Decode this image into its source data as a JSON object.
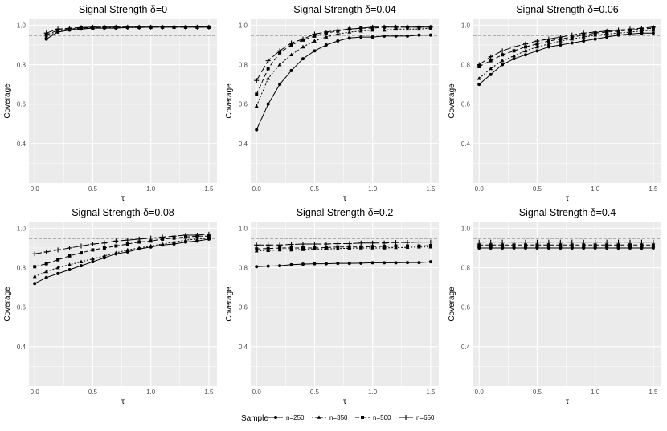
{
  "figure": {
    "legend_title": "Sample",
    "legend_position": "bottom",
    "reference_line": 0.95,
    "colors": {
      "panel_bg": "#ebebeb",
      "grid": "#ffffff",
      "line": "#000000"
    }
  },
  "series_styles": [
    {
      "name": "n=250",
      "dash": "none",
      "marker": "circle"
    },
    {
      "name": "n=350",
      "dash": "2,2",
      "marker": "triangle"
    },
    {
      "name": "n=500",
      "dash": "5,3",
      "marker": "square"
    },
    {
      "name": "n=650",
      "dash": "9,3",
      "marker": "cross"
    }
  ],
  "chart_data": [
    {
      "type": "line",
      "title": "Signal Strength δ=0",
      "xlabel": "τ",
      "ylabel": "Coverage",
      "xlim": [
        -0.05,
        1.57
      ],
      "ylim": [
        0.2,
        1.03
      ],
      "xticks": [
        "0.0",
        "0.5",
        "1.0",
        "1.5"
      ],
      "yticks": [
        "0.4",
        "0.6",
        "0.8",
        "1.0"
      ],
      "x": [
        0.1,
        0.2,
        0.3,
        0.4,
        0.5,
        0.6,
        0.7,
        0.8,
        0.9,
        1.0,
        1.1,
        1.2,
        1.3,
        1.4,
        1.5
      ],
      "series": [
        {
          "name": "n=250",
          "values": [
            0.93,
            0.965,
            0.975,
            0.98,
            0.985,
            0.985,
            0.985,
            0.988,
            0.988,
            0.99,
            0.99,
            0.99,
            0.99,
            0.99,
            0.99
          ]
        },
        {
          "name": "n=350",
          "values": [
            0.94,
            0.97,
            0.98,
            0.985,
            0.985,
            0.988,
            0.988,
            0.99,
            0.99,
            0.99,
            0.99,
            0.99,
            0.99,
            0.99,
            0.99
          ]
        },
        {
          "name": "n=500",
          "values": [
            0.95,
            0.975,
            0.98,
            0.985,
            0.988,
            0.99,
            0.99,
            0.99,
            0.99,
            0.99,
            0.99,
            0.99,
            0.99,
            0.99,
            0.99
          ]
        },
        {
          "name": "n=650",
          "values": [
            0.96,
            0.98,
            0.985,
            0.988,
            0.99,
            0.99,
            0.99,
            0.99,
            0.99,
            0.99,
            0.99,
            0.99,
            0.99,
            0.99,
            0.99
          ]
        }
      ]
    },
    {
      "type": "line",
      "title": "Signal Strength δ=0.04",
      "xlabel": "τ",
      "ylabel": "Coverage",
      "xlim": [
        -0.05,
        1.57
      ],
      "ylim": [
        0.2,
        1.03
      ],
      "xticks": [
        "0.0",
        "0.5",
        "1.0",
        "1.5"
      ],
      "yticks": [
        "0.4",
        "0.6",
        "0.8",
        "1.0"
      ],
      "x": [
        0.0,
        0.1,
        0.2,
        0.3,
        0.4,
        0.5,
        0.6,
        0.7,
        0.8,
        0.9,
        1.0,
        1.1,
        1.2,
        1.3,
        1.4,
        1.5
      ],
      "series": [
        {
          "name": "n=250",
          "values": [
            0.47,
            0.6,
            0.7,
            0.77,
            0.83,
            0.87,
            0.9,
            0.92,
            0.935,
            0.94,
            0.94,
            0.945,
            0.945,
            0.945,
            0.95,
            0.95
          ]
        },
        {
          "name": "n=350",
          "values": [
            0.59,
            0.73,
            0.8,
            0.85,
            0.89,
            0.92,
            0.94,
            0.955,
            0.965,
            0.97,
            0.975,
            0.975,
            0.98,
            0.98,
            0.98,
            0.985
          ]
        },
        {
          "name": "n=500",
          "values": [
            0.65,
            0.78,
            0.86,
            0.9,
            0.925,
            0.945,
            0.96,
            0.97,
            0.98,
            0.985,
            0.985,
            0.99,
            0.99,
            0.99,
            0.99,
            0.99
          ]
        },
        {
          "name": "n=650",
          "values": [
            0.72,
            0.82,
            0.87,
            0.91,
            0.93,
            0.955,
            0.965,
            0.975,
            0.98,
            0.985,
            0.99,
            0.99,
            0.99,
            0.99,
            0.99,
            0.99
          ]
        }
      ]
    },
    {
      "type": "line",
      "title": "Signal Strength δ=0.06",
      "xlabel": "τ",
      "ylabel": "Coverage",
      "xlim": [
        -0.05,
        1.57
      ],
      "ylim": [
        0.2,
        1.03
      ],
      "xticks": [
        "0.0",
        "0.5",
        "1.0",
        "1.5"
      ],
      "yticks": [
        "0.4",
        "0.6",
        "0.8",
        "1.0"
      ],
      "x": [
        0.0,
        0.1,
        0.2,
        0.3,
        0.4,
        0.5,
        0.6,
        0.7,
        0.8,
        0.9,
        1.0,
        1.1,
        1.2,
        1.3,
        1.4,
        1.5
      ],
      "series": [
        {
          "name": "n=250",
          "values": [
            0.7,
            0.75,
            0.8,
            0.83,
            0.85,
            0.87,
            0.89,
            0.9,
            0.91,
            0.92,
            0.93,
            0.94,
            0.95,
            0.955,
            0.96,
            0.96
          ]
        },
        {
          "name": "n=350",
          "values": [
            0.73,
            0.78,
            0.82,
            0.845,
            0.87,
            0.89,
            0.905,
            0.92,
            0.93,
            0.94,
            0.95,
            0.955,
            0.96,
            0.965,
            0.97,
            0.975
          ]
        },
        {
          "name": "n=500",
          "values": [
            0.79,
            0.82,
            0.85,
            0.87,
            0.89,
            0.905,
            0.92,
            0.93,
            0.94,
            0.95,
            0.96,
            0.965,
            0.97,
            0.975,
            0.98,
            0.985
          ]
        },
        {
          "name": "n=650",
          "values": [
            0.8,
            0.84,
            0.87,
            0.89,
            0.905,
            0.92,
            0.93,
            0.94,
            0.95,
            0.96,
            0.965,
            0.97,
            0.975,
            0.98,
            0.985,
            0.99
          ]
        }
      ]
    },
    {
      "type": "line",
      "title": "Signal Strength δ=0.08",
      "xlabel": "τ",
      "ylabel": "Coverage",
      "xlim": [
        -0.05,
        1.57
      ],
      "ylim": [
        0.2,
        1.03
      ],
      "xticks": [
        "0.0",
        "0.5",
        "1.0",
        "1.5"
      ],
      "yticks": [
        "0.4",
        "0.6",
        "0.8",
        "1.0"
      ],
      "x": [
        0.0,
        0.1,
        0.2,
        0.3,
        0.4,
        0.5,
        0.6,
        0.7,
        0.8,
        0.9,
        1.0,
        1.1,
        1.2,
        1.3,
        1.4,
        1.5
      ],
      "series": [
        {
          "name": "n=250",
          "values": [
            0.72,
            0.75,
            0.77,
            0.79,
            0.81,
            0.83,
            0.85,
            0.87,
            0.88,
            0.895,
            0.905,
            0.915,
            0.92,
            0.93,
            0.935,
            0.945
          ]
        },
        {
          "name": "n=350",
          "values": [
            0.755,
            0.78,
            0.8,
            0.815,
            0.83,
            0.845,
            0.86,
            0.875,
            0.89,
            0.9,
            0.91,
            0.92,
            0.93,
            0.94,
            0.945,
            0.95
          ]
        },
        {
          "name": "n=500",
          "values": [
            0.805,
            0.82,
            0.84,
            0.86,
            0.875,
            0.89,
            0.9,
            0.91,
            0.92,
            0.93,
            0.935,
            0.945,
            0.95,
            0.955,
            0.96,
            0.96
          ]
        },
        {
          "name": "n=650",
          "values": [
            0.87,
            0.88,
            0.89,
            0.9,
            0.91,
            0.92,
            0.925,
            0.935,
            0.94,
            0.945,
            0.95,
            0.955,
            0.96,
            0.965,
            0.965,
            0.97
          ]
        }
      ]
    },
    {
      "type": "line",
      "title": "Signal Strength δ=0.2",
      "xlabel": "τ",
      "ylabel": "Coverage",
      "xlim": [
        -0.05,
        1.57
      ],
      "ylim": [
        0.2,
        1.03
      ],
      "xticks": [
        "0.0",
        "0.5",
        "1.0",
        "1.5"
      ],
      "yticks": [
        "0.4",
        "0.6",
        "0.8",
        "1.0"
      ],
      "x": [
        0.0,
        0.1,
        0.2,
        0.3,
        0.4,
        0.5,
        0.6,
        0.7,
        0.8,
        0.9,
        1.0,
        1.1,
        1.2,
        1.3,
        1.4,
        1.5
      ],
      "series": [
        {
          "name": "n=250",
          "values": [
            0.805,
            0.808,
            0.81,
            0.815,
            0.818,
            0.82,
            0.82,
            0.822,
            0.822,
            0.823,
            0.825,
            0.825,
            0.825,
            0.826,
            0.826,
            0.83
          ]
        },
        {
          "name": "n=350",
          "values": [
            0.885,
            0.887,
            0.89,
            0.89,
            0.892,
            0.895,
            0.895,
            0.897,
            0.898,
            0.9,
            0.9,
            0.9,
            0.902,
            0.903,
            0.905,
            0.905
          ]
        },
        {
          "name": "n=500",
          "values": [
            0.895,
            0.897,
            0.9,
            0.9,
            0.9,
            0.9,
            0.902,
            0.905,
            0.905,
            0.905,
            0.907,
            0.908,
            0.91,
            0.91,
            0.91,
            0.912
          ]
        },
        {
          "name": "n=650",
          "values": [
            0.915,
            0.915,
            0.915,
            0.918,
            0.92,
            0.92,
            0.92,
            0.922,
            0.922,
            0.925,
            0.925,
            0.925,
            0.928,
            0.928,
            0.93,
            0.93
          ]
        }
      ]
    },
    {
      "type": "line",
      "title": "Signal Strength δ=0.4",
      "xlabel": "τ",
      "ylabel": "Coverage",
      "xlim": [
        -0.05,
        1.57
      ],
      "ylim": [
        0.2,
        1.03
      ],
      "xticks": [
        "0.0",
        "0.5",
        "1.0",
        "1.5"
      ],
      "yticks": [
        "0.4",
        "0.6",
        "0.8",
        "1.0"
      ],
      "x": [
        0.0,
        0.1,
        0.2,
        0.3,
        0.4,
        0.5,
        0.6,
        0.7,
        0.8,
        0.9,
        1.0,
        1.1,
        1.2,
        1.3,
        1.4,
        1.5
      ],
      "series": [
        {
          "name": "n=250",
          "values": [
            0.9,
            0.9,
            0.9,
            0.9,
            0.9,
            0.9,
            0.9,
            0.9,
            0.9,
            0.9,
            0.9,
            0.9,
            0.9,
            0.9,
            0.9,
            0.9
          ]
        },
        {
          "name": "n=350",
          "values": [
            0.91,
            0.91,
            0.91,
            0.91,
            0.91,
            0.91,
            0.91,
            0.91,
            0.91,
            0.91,
            0.91,
            0.91,
            0.91,
            0.91,
            0.91,
            0.91
          ]
        },
        {
          "name": "n=500",
          "values": [
            0.915,
            0.915,
            0.915,
            0.915,
            0.915,
            0.915,
            0.915,
            0.915,
            0.915,
            0.915,
            0.915,
            0.915,
            0.915,
            0.915,
            0.915,
            0.915
          ]
        },
        {
          "name": "n=650",
          "values": [
            0.93,
            0.93,
            0.93,
            0.93,
            0.93,
            0.93,
            0.93,
            0.93,
            0.93,
            0.93,
            0.93,
            0.93,
            0.93,
            0.93,
            0.93,
            0.93
          ]
        }
      ]
    }
  ]
}
